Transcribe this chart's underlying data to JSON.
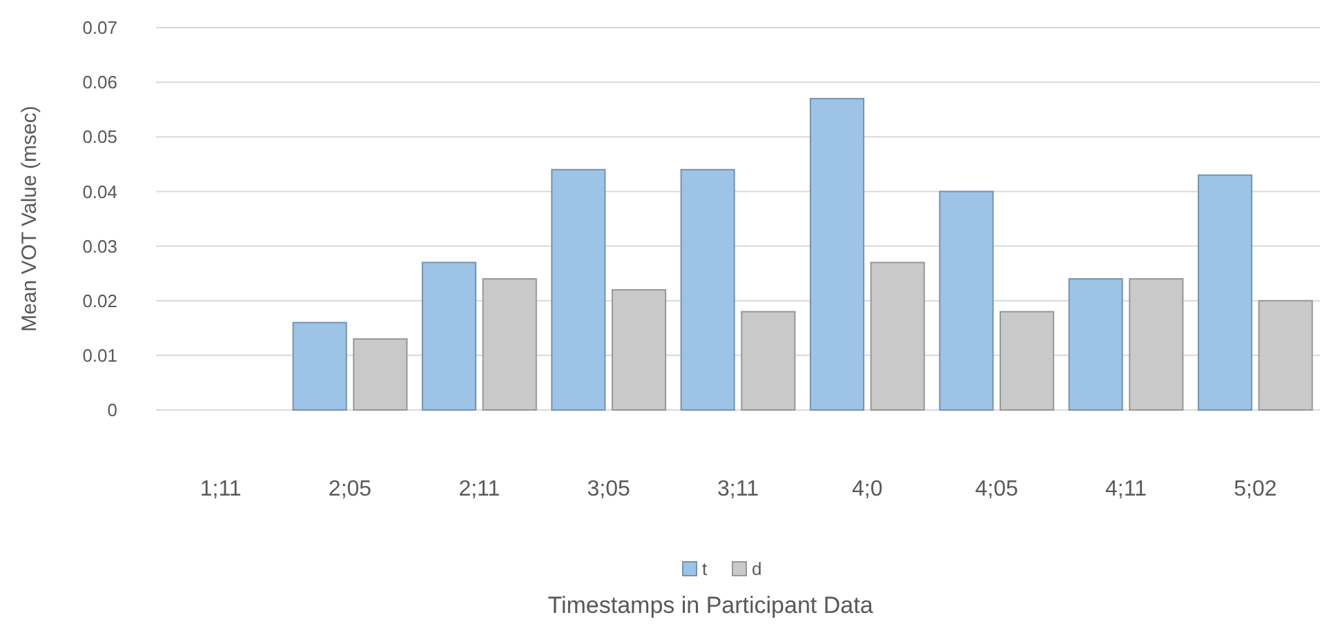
{
  "chart_data": {
    "type": "bar",
    "xlabel": "Timestamps in Participant Data",
    "ylabel": "Mean VOT Value (msec)",
    "categories": [
      "1;11",
      "2;05",
      "2;11",
      "3;05",
      "3;11",
      "4;0",
      "4;05",
      "4;11",
      "5;02"
    ],
    "series": [
      {
        "name": "t",
        "color": "#9dc3e6",
        "values": [
          null,
          0.016,
          0.027,
          0.044,
          0.044,
          0.057,
          0.04,
          0.024,
          0.043
        ]
      },
      {
        "name": "d",
        "color": "#c9c9c9",
        "values": [
          null,
          0.013,
          0.024,
          0.022,
          0.018,
          0.027,
          0.018,
          0.024,
          0.02
        ]
      }
    ],
    "ylim": [
      0,
      0.07
    ],
    "yticks": [
      0,
      0.01,
      0.02,
      0.03,
      0.04,
      0.05,
      0.06,
      0.07
    ],
    "grid": "y",
    "legend": "bottom"
  }
}
